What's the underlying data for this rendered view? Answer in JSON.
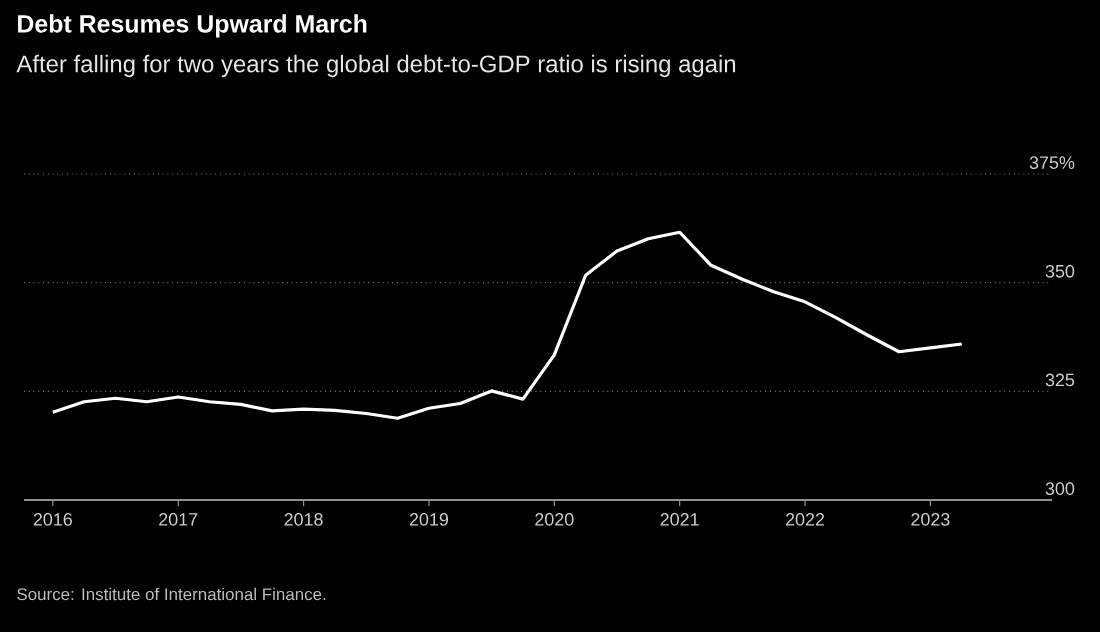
{
  "chart_data": {
    "type": "line",
    "title": "Debt Resumes Upward March",
    "subtitle": "After falling for two years the global debt-to-GDP ratio is rising again",
    "annotations": [
      "Source: Institute of International Finance."
    ],
    "x": [
      2016.0,
      2016.25,
      2016.5,
      2016.75,
      2017.0,
      2017.25,
      2017.5,
      2017.75,
      2018.0,
      2018.25,
      2018.5,
      2018.75,
      2019.0,
      2019.25,
      2019.5,
      2019.75,
      2020.0,
      2020.25,
      2020.5,
      2020.75,
      2021.0,
      2021.25,
      2021.5,
      2021.75,
      2022.0,
      2022.25,
      2022.5,
      2022.75,
      2023.0,
      2023.25
    ],
    "series": [
      {
        "color": "#ffffff",
        "values": [
          320.2,
          322.6,
          323.4,
          322.6,
          323.7,
          322.6,
          322.0,
          320.5,
          320.9,
          320.6,
          319.9,
          318.8,
          321.1,
          322.2,
          325.1,
          323.2,
          333.4,
          351.7,
          357.3,
          360.1,
          361.6,
          354.0,
          350.8,
          347.9,
          345.6,
          341.9,
          337.9,
          334.1,
          335.0,
          335.9
        ]
      }
    ],
    "xlim": [
      2015.77,
      2023.97
    ],
    "ylim": [
      300,
      375
    ],
    "xticks": [
      2016,
      2017,
      2018,
      2019,
      2020,
      2021,
      2022,
      2023
    ],
    "yticks": [
      300,
      325,
      350,
      {
        "value": 375,
        "label": "375%"
      }
    ],
    "grid": "y"
  }
}
